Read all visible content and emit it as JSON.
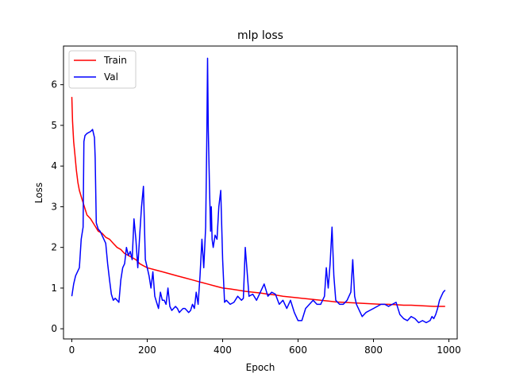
{
  "chart_data": {
    "type": "line",
    "title": "mlp loss",
    "xlabel": "Epoch",
    "ylabel": "Loss",
    "xlim": [
      -22,
      1022
    ],
    "ylim": [
      -0.25,
      6.95
    ],
    "xticks": [
      0,
      200,
      400,
      600,
      800,
      1000
    ],
    "xtick_labels": [
      "0",
      "200",
      "400",
      "600",
      "800",
      "1000"
    ],
    "yticks": [
      0,
      1,
      2,
      3,
      4,
      5,
      6
    ],
    "ytick_labels": [
      "0",
      "1",
      "2",
      "3",
      "4",
      "5",
      "6"
    ],
    "legend_position": "top-left",
    "series": [
      {
        "name": "Train",
        "color": "#ff0000",
        "x": [
          0,
          2,
          5,
          8,
          12,
          16,
          20,
          25,
          30,
          35,
          40,
          50,
          60,
          70,
          80,
          90,
          100,
          110,
          120,
          130,
          140,
          150,
          160,
          170,
          180,
          190,
          200,
          220,
          240,
          260,
          280,
          300,
          320,
          340,
          360,
          380,
          400,
          420,
          440,
          460,
          480,
          500,
          520,
          540,
          560,
          580,
          600,
          620,
          640,
          660,
          680,
          700,
          720,
          740,
          760,
          780,
          800,
          820,
          840,
          860,
          880,
          900,
          920,
          940,
          960,
          980,
          990
        ],
        "y": [
          5.7,
          5.1,
          4.6,
          4.3,
          3.9,
          3.6,
          3.4,
          3.25,
          3.1,
          2.95,
          2.8,
          2.7,
          2.55,
          2.4,
          2.35,
          2.25,
          2.2,
          2.1,
          2.0,
          1.95,
          1.85,
          1.8,
          1.75,
          1.7,
          1.6,
          1.55,
          1.5,
          1.45,
          1.4,
          1.35,
          1.3,
          1.25,
          1.2,
          1.15,
          1.1,
          1.05,
          1.0,
          0.98,
          0.95,
          0.92,
          0.9,
          0.88,
          0.85,
          0.83,
          0.8,
          0.78,
          0.76,
          0.74,
          0.72,
          0.7,
          0.68,
          0.66,
          0.65,
          0.64,
          0.63,
          0.62,
          0.61,
          0.6,
          0.6,
          0.59,
          0.58,
          0.58,
          0.57,
          0.56,
          0.55,
          0.55,
          0.55
        ]
      },
      {
        "name": "Val",
        "color": "#0000ff",
        "x": [
          0,
          5,
          10,
          15,
          20,
          25,
          30,
          32,
          35,
          40,
          50,
          55,
          60,
          62,
          65,
          70,
          75,
          80,
          90,
          95,
          100,
          105,
          110,
          115,
          120,
          125,
          130,
          135,
          140,
          145,
          150,
          155,
          160,
          165,
          170,
          175,
          180,
          185,
          190,
          195,
          200,
          205,
          210,
          215,
          220,
          225,
          230,
          235,
          240,
          245,
          250,
          255,
          260,
          265,
          270,
          275,
          280,
          285,
          290,
          295,
          300,
          305,
          310,
          315,
          320,
          325,
          330,
          335,
          340,
          345,
          350,
          355,
          358,
          360,
          362,
          365,
          368,
          370,
          372,
          375,
          380,
          385,
          390,
          395,
          400,
          405,
          410,
          420,
          430,
          440,
          450,
          455,
          460,
          470,
          480,
          490,
          500,
          510,
          520,
          530,
          540,
          550,
          560,
          570,
          580,
          590,
          600,
          610,
          620,
          630,
          640,
          650,
          660,
          670,
          675,
          680,
          685,
          690,
          695,
          700,
          710,
          720,
          730,
          740,
          745,
          750,
          755,
          760,
          770,
          780,
          790,
          800,
          810,
          820,
          830,
          840,
          850,
          860,
          870,
          880,
          890,
          900,
          910,
          920,
          930,
          940,
          950,
          955,
          960,
          965,
          970,
          975,
          980,
          985,
          990
        ],
        "y": [
          0.8,
          1.1,
          1.3,
          1.4,
          1.5,
          2.2,
          2.5,
          4.6,
          4.75,
          4.8,
          4.85,
          4.9,
          4.7,
          4.2,
          2.6,
          2.45,
          2.4,
          2.3,
          2.1,
          1.6,
          1.2,
          0.85,
          0.7,
          0.75,
          0.7,
          0.65,
          1.2,
          1.5,
          1.6,
          2.0,
          1.8,
          1.9,
          1.7,
          2.7,
          2.2,
          1.5,
          2.3,
          3.0,
          3.5,
          1.7,
          1.5,
          1.3,
          1.0,
          1.4,
          0.8,
          0.65,
          0.5,
          0.9,
          0.7,
          0.7,
          0.6,
          1.0,
          0.55,
          0.45,
          0.5,
          0.55,
          0.5,
          0.4,
          0.45,
          0.5,
          0.5,
          0.45,
          0.4,
          0.45,
          0.6,
          0.5,
          0.9,
          0.6,
          1.3,
          2.2,
          1.5,
          2.5,
          4.6,
          6.65,
          4.9,
          3.5,
          2.4,
          3.0,
          2.2,
          2.0,
          2.3,
          2.2,
          3.0,
          3.4,
          1.7,
          0.65,
          0.7,
          0.6,
          0.65,
          0.8,
          0.7,
          0.75,
          2.0,
          0.8,
          0.85,
          0.7,
          0.9,
          1.1,
          0.8,
          0.9,
          0.85,
          0.6,
          0.7,
          0.5,
          0.7,
          0.4,
          0.2,
          0.2,
          0.5,
          0.6,
          0.7,
          0.6,
          0.6,
          0.8,
          1.5,
          1.0,
          1.6,
          2.5,
          1.3,
          0.7,
          0.6,
          0.6,
          0.7,
          0.9,
          1.7,
          0.8,
          0.6,
          0.5,
          0.3,
          0.4,
          0.45,
          0.5,
          0.55,
          0.6,
          0.6,
          0.55,
          0.6,
          0.65,
          0.35,
          0.25,
          0.2,
          0.3,
          0.25,
          0.15,
          0.2,
          0.15,
          0.2,
          0.3,
          0.25,
          0.35,
          0.5,
          0.7,
          0.8,
          0.9,
          0.95
        ]
      }
    ]
  }
}
